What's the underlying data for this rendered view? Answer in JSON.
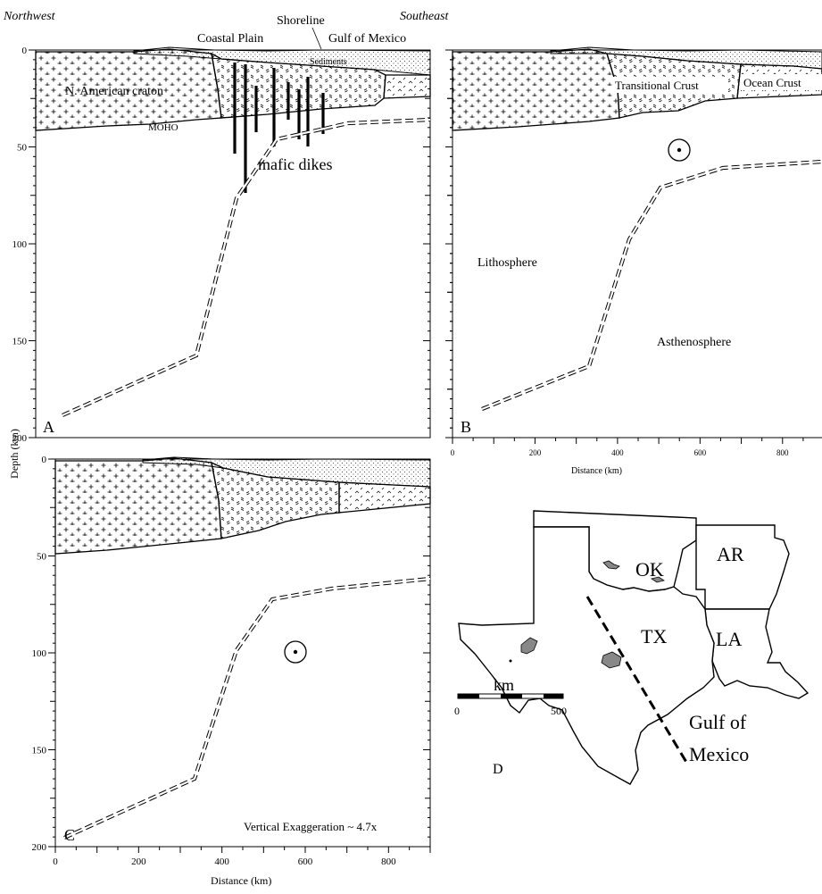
{
  "header": {
    "left": "Northwest",
    "right": "Southeast",
    "shoreline": "Shoreline",
    "coastal_plain": "Coastal Plain",
    "gulf": "Gulf of Mexico"
  },
  "axes": {
    "y_label": "Depth (km)",
    "x_label": "Distance (km)",
    "y_ticks": [
      "0",
      "50",
      "100",
      "150",
      "200"
    ],
    "x_ticks": [
      "0",
      "200",
      "400",
      "600",
      "800"
    ]
  },
  "panel_a": {
    "letter": "A",
    "sediments": "Sediments",
    "craton": "N. American craton",
    "moho": "MOHO",
    "dikes": "mafic dikes"
  },
  "panel_b": {
    "letter": "B",
    "transitional": "Transitional Crust",
    "ocean": "Ocean Crust",
    "lithosphere": "Lithosphere",
    "asthenosphere": "Asthenosphere"
  },
  "panel_c": {
    "letter": "C",
    "exaggeration": "Vertical Exaggeration ~ 4.7x"
  },
  "panel_d": {
    "letter": "D",
    "states": [
      "OK",
      "AR",
      "TX",
      "LA"
    ],
    "scale_unit": "km",
    "scale_min": "0",
    "scale_max": "500",
    "gulf_line1": "Gulf of",
    "gulf_line2": "Mexico",
    "colors": {
      "outline": "#000000",
      "igneous": "#888888"
    }
  }
}
